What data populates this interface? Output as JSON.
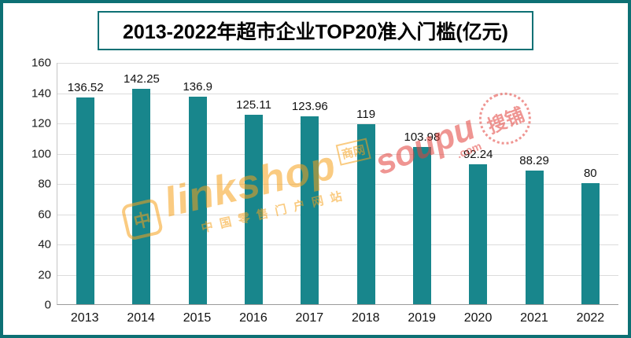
{
  "title": "2013-2022年超市企业TOP20准入门槛(亿元)",
  "chart_data": {
    "type": "bar",
    "title": "2013-2022年超市企业TOP20准入门槛(亿元)",
    "categories": [
      "2013",
      "2014",
      "2015",
      "2016",
      "2017",
      "2018",
      "2019",
      "2020",
      "2021",
      "2022"
    ],
    "values": [
      136.52,
      142.25,
      136.9,
      125.11,
      123.96,
      119,
      103.98,
      92.24,
      88.29,
      80
    ],
    "xlabel": "",
    "ylabel": "",
    "ylim": [
      0,
      160
    ],
    "ytick_step": 20,
    "grid": true,
    "legend": "none",
    "bar_color": "#18868c"
  },
  "colors": {
    "bar": "#18868c",
    "frame_border": "#0d7074",
    "gridline": "#dcdcdc",
    "text": "#111111",
    "watermark_orange": "#f6a21c",
    "watermark_red": "#e2403a"
  },
  "watermarks": {
    "linkshop": {
      "logo": "中",
      "main": "linkshop",
      "badge": "商网",
      "sub": "中国零售门户网站"
    },
    "soupu": {
      "main": "soupu",
      "com": ".com",
      "seal": "搜铺"
    }
  }
}
